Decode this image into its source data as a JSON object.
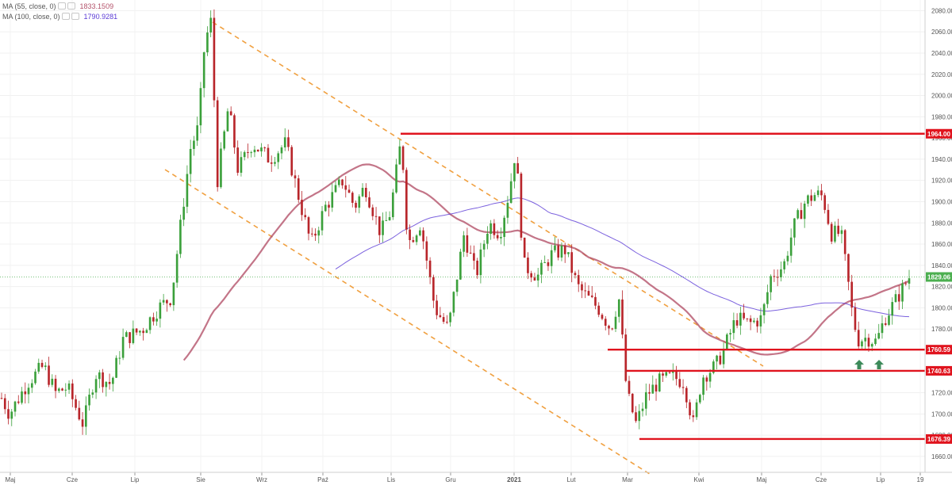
{
  "legend": [
    {
      "label": "MA (55, close, 0)",
      "value": "1833.1509",
      "color": "#b4526a"
    },
    {
      "label": "MA (100, close, 0)",
      "value": "1790.9281",
      "color": "#5a3ad6"
    }
  ],
  "chart_data": {
    "type": "candlestick",
    "ylim": [
      1645,
      2090
    ],
    "y_ticks": [
      1660,
      1680,
      1700,
      1720,
      1740,
      1760,
      1780,
      1800,
      1820,
      1840,
      1860,
      1880,
      1900,
      1920,
      1940,
      1960,
      1980,
      2000,
      2020,
      2040,
      2060,
      2080
    ],
    "x_labels": [
      "Maj",
      "Cze",
      "Lip",
      "Sie",
      "Wrz",
      "Paź",
      "Lis",
      "Gru",
      "2021",
      "Lut",
      "Mar",
      "Kwi",
      "Maj",
      "Cze",
      "Lip",
      "19"
    ],
    "current_price": {
      "value": 1829.06,
      "label": "1829.06",
      "color": "#4caf50"
    },
    "levels": [
      {
        "value": 1964.0,
        "label": "1964.00",
        "color": "#e0141e"
      },
      {
        "value": 1760.59,
        "label": "1760.59",
        "color": "#e0141e"
      },
      {
        "value": 1740.63,
        "label": "1740.63",
        "color": "#e0141e"
      },
      {
        "value": 1676.39,
        "label": "1676.39",
        "color": "#e0141e"
      }
    ],
    "colors": {
      "up": "#3ba03b",
      "down": "#b8252a",
      "trend": "#f0a040",
      "arrow": "#3d8a5a"
    }
  }
}
